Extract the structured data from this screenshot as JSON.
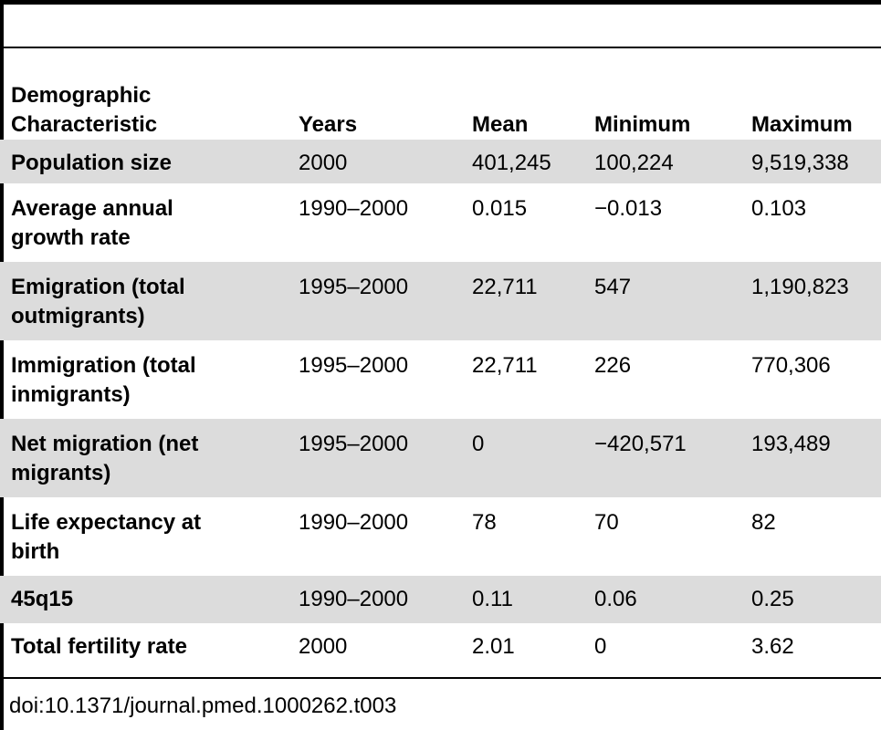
{
  "table": {
    "headers": [
      "Demographic Characteristic",
      "Years",
      "Mean",
      "Minimum",
      "Maximum"
    ],
    "rows": [
      {
        "characteristic": "Population size",
        "years": "2000",
        "mean": "401,245",
        "minimum": "100,224",
        "maximum": "9,519,338"
      },
      {
        "characteristic": "Average annual growth rate",
        "years": "1990–2000",
        "mean": "0.015",
        "minimum": "−0.013",
        "maximum": "0.103"
      },
      {
        "characteristic": "Emigration (total outmigrants)",
        "years": "1995–2000",
        "mean": "22,711",
        "minimum": "547",
        "maximum": "1,190,823"
      },
      {
        "characteristic": "Immigration (total inmigrants)",
        "years": "1995–2000",
        "mean": "22,711",
        "minimum": "226",
        "maximum": "770,306"
      },
      {
        "characteristic": "Net migration (net migrants)",
        "years": "1995–2000",
        "mean": "0",
        "minimum": "−420,571",
        "maximum": "193,489"
      },
      {
        "characteristic": "Life expectancy at birth",
        "years": "1990–2000",
        "mean": "78",
        "minimum": "70",
        "maximum": "82"
      },
      {
        "characteristic": "45q15",
        "years": "1990–2000",
        "mean": "0.11",
        "minimum": "0.06",
        "maximum": "0.25"
      },
      {
        "characteristic": "Total fertility rate",
        "years": "2000",
        "mean": "2.01",
        "minimum": "0",
        "maximum": "3.62"
      }
    ]
  },
  "doi": "doi:10.1371/journal.pmed.1000262.t003"
}
